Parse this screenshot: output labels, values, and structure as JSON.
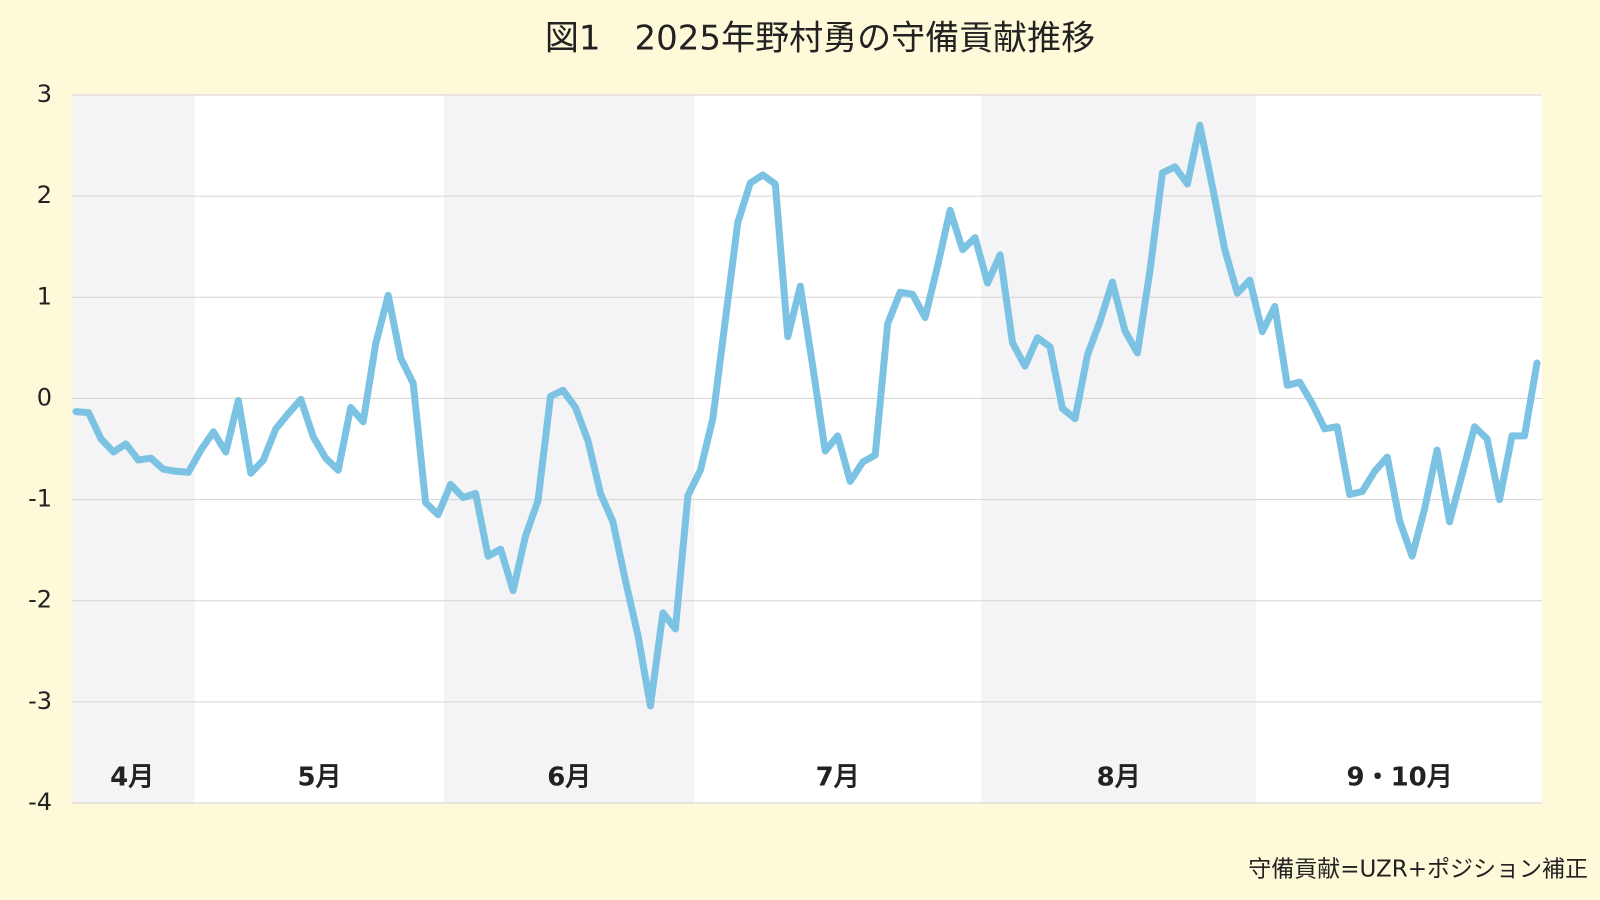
{
  "chart_data": {
    "type": "line",
    "title": "図1　2025年野村勇の守備貢献推移",
    "note": "守備貢献=UZR+ポジション補正",
    "categories": [
      "4月",
      "4月",
      "4月",
      "4月",
      "4月",
      "4月",
      "4月",
      "4月",
      "4月",
      "4月",
      "5月",
      "5月",
      "5月",
      "5月",
      "5月",
      "5月",
      "5月",
      "5月",
      "5月",
      "5月",
      "5月",
      "5月",
      "5月",
      "5月",
      "5月",
      "5月",
      "5月",
      "5月",
      "5月",
      "5月",
      "6月",
      "6月",
      "6月",
      "6月",
      "6月",
      "6月",
      "6月",
      "6月",
      "6月",
      "6月",
      "6月",
      "6月",
      "6月",
      "6月",
      "6月",
      "6月",
      "6月",
      "6月",
      "6月",
      "6月",
      "7月",
      "7月",
      "7月",
      "7月",
      "7月",
      "7月",
      "7月",
      "7月",
      "7月",
      "7月",
      "7月",
      "7月",
      "7月",
      "7月",
      "7月",
      "7月",
      "7月",
      "7月",
      "7月",
      "7月",
      "7月",
      "7月",
      "7月",
      "8月",
      "8月",
      "8月",
      "8月",
      "8月",
      "8月",
      "8月",
      "8月",
      "8月",
      "8月",
      "8月",
      "8月",
      "8月",
      "8月",
      "8月",
      "8月",
      "8月",
      "8月",
      "8月",
      "8月",
      "8月",
      "8月",
      "9・10月",
      "9・10月",
      "9・10月",
      "9・10月",
      "9・10月",
      "9・10月",
      "9・10月",
      "9・10月",
      "9・10月",
      "9・10月",
      "9・10月",
      "9・10月",
      "9・10月",
      "9・10月",
      "9・10月",
      "9・10月",
      "9・10月",
      "9・10月",
      "9・10月",
      "9・10月",
      "9・10月",
      "9・10月",
      "9・10月"
    ],
    "series": [
      {
        "color": "#7cc3e3",
        "values": [
          -0.13,
          -0.14,
          -0.4,
          -0.53,
          -0.45,
          -0.61,
          -0.59,
          -0.7,
          -0.72,
          -0.73,
          -0.51,
          -0.33,
          -0.53,
          -0.02,
          -0.74,
          -0.61,
          -0.3,
          -0.15,
          -0.01,
          -0.38,
          -0.59,
          -0.71,
          -0.09,
          -0.23,
          0.54,
          1.02,
          0.4,
          0.15,
          -1.03,
          -1.15,
          -0.85,
          -0.98,
          -0.94,
          -1.56,
          -1.49,
          -1.9,
          -1.36,
          -1.01,
          0.02,
          0.08,
          -0.09,
          -0.42,
          -0.94,
          -1.22,
          -1.8,
          -2.34,
          -3.04,
          -2.12,
          -2.28,
          -0.96,
          -0.71,
          -0.2,
          0.77,
          1.74,
          2.13,
          2.21,
          2.12,
          0.61,
          1.11,
          0.32,
          -0.52,
          -0.37,
          -0.82,
          -0.63,
          -0.56,
          0.74,
          1.05,
          1.03,
          0.8,
          1.31,
          1.86,
          1.47,
          1.59,
          1.14,
          1.42,
          0.55,
          0.32,
          0.6,
          0.51,
          -0.1,
          -0.2,
          0.43,
          0.76,
          1.15,
          0.67,
          0.45,
          1.26,
          2.23,
          2.29,
          2.12,
          2.7,
          2.1,
          1.47,
          1.04,
          1.17,
          0.66,
          0.91,
          0.13,
          0.16,
          -0.05,
          -0.3,
          -0.28,
          -0.95,
          -0.92,
          -0.72,
          -0.58,
          -1.21,
          -1.56,
          -1.09,
          -0.51,
          -1.22,
          -0.75,
          -0.28,
          -0.4,
          -1.0,
          -0.37,
          -0.37,
          0.35
        ]
      }
    ],
    "ylim": [
      -4,
      3
    ],
    "yticks": [
      -4,
      -3,
      -2,
      -1,
      0,
      1,
      2,
      3
    ],
    "grid": true
  }
}
